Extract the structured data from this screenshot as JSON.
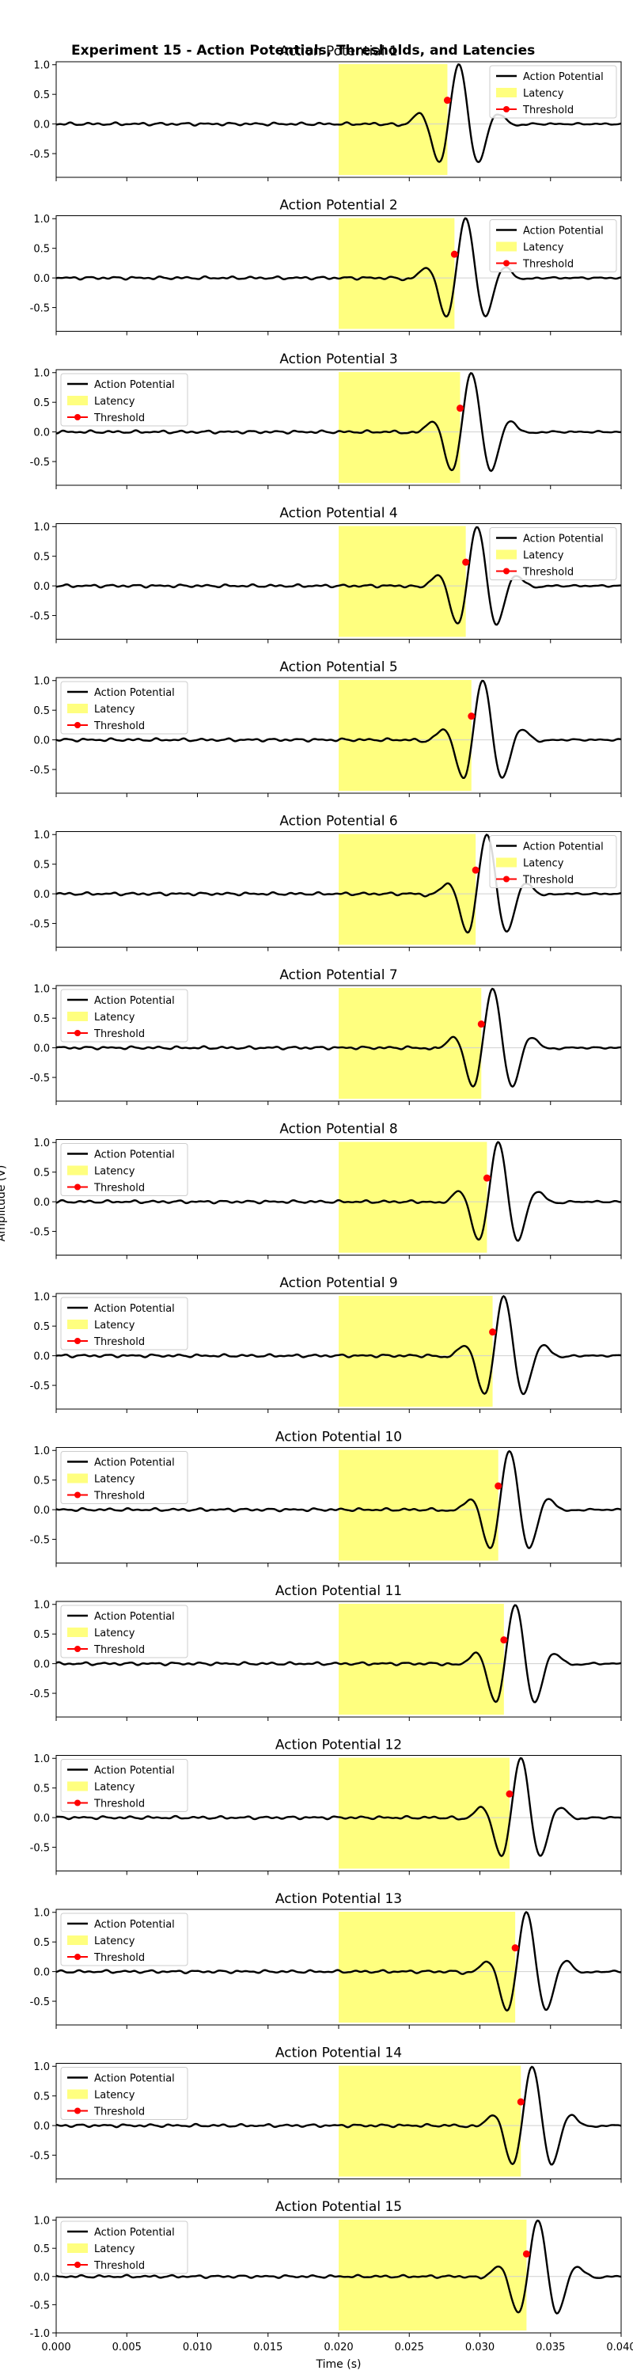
{
  "figure": {
    "suptitle": "Experiment 15 - Action Potentials, Thresholds, and Latencies",
    "xlabel": "Time (s)",
    "ylabel": "Amplitude (V)"
  },
  "chart_data": {
    "type": "line",
    "panel_count": 15,
    "xlim": [
      0.0,
      0.04
    ],
    "x_ticks": [
      "0.000",
      "0.005",
      "0.010",
      "0.015",
      "0.020",
      "0.025",
      "0.030",
      "0.035",
      "0.040"
    ],
    "x_tick_values": [
      0.0,
      0.005,
      0.01,
      0.015,
      0.02,
      0.025,
      0.03,
      0.035,
      0.04
    ],
    "y_ticks": [
      "-0.5",
      "0.0",
      "0.5",
      "1.0"
    ],
    "y_tick_values": [
      -0.5,
      0.0,
      0.5,
      1.0
    ],
    "last_panel_y_ticks": [
      "-1.0",
      "-0.5",
      "0.0",
      "0.5",
      "1.0"
    ],
    "last_panel_y_tick_values": [
      -1.0,
      -0.5,
      0.0,
      0.5,
      1.0
    ],
    "ylim": [
      -0.9,
      1.05
    ],
    "last_panel_ylim": [
      -1.0,
      1.05
    ],
    "grid": "y-zero-line",
    "legend_labels": [
      "Action Potential",
      "Latency",
      "Threshold"
    ],
    "colors": {
      "trace": "#000000",
      "latency": "#ffff7f",
      "threshold": "#ff0000",
      "zero": "#cfcfcf"
    },
    "latency_start": 0.02,
    "panels": [
      {
        "title": "Action Potential 1",
        "peak_time": 0.0285,
        "latency_end": 0.0277,
        "threshold_time": 0.0277,
        "threshold_value": 0.4,
        "legend": "upper-right"
      },
      {
        "title": "Action Potential 2",
        "peak_time": 0.029,
        "latency_end": 0.0282,
        "threshold_time": 0.0282,
        "threshold_value": 0.4,
        "legend": "upper-right"
      },
      {
        "title": "Action Potential 3",
        "peak_time": 0.0294,
        "latency_end": 0.0286,
        "threshold_time": 0.0286,
        "threshold_value": 0.4,
        "legend": "upper-left"
      },
      {
        "title": "Action Potential 4",
        "peak_time": 0.0298,
        "latency_end": 0.029,
        "threshold_time": 0.029,
        "threshold_value": 0.4,
        "legend": "upper-right"
      },
      {
        "title": "Action Potential 5",
        "peak_time": 0.0302,
        "latency_end": 0.0294,
        "threshold_time": 0.0294,
        "threshold_value": 0.4,
        "legend": "upper-left"
      },
      {
        "title": "Action Potential 6",
        "peak_time": 0.0305,
        "latency_end": 0.0297,
        "threshold_time": 0.0297,
        "threshold_value": 0.4,
        "legend": "upper-right"
      },
      {
        "title": "Action Potential 7",
        "peak_time": 0.0309,
        "latency_end": 0.0301,
        "threshold_time": 0.0301,
        "threshold_value": 0.4,
        "legend": "upper-left"
      },
      {
        "title": "Action Potential 8",
        "peak_time": 0.0313,
        "latency_end": 0.0305,
        "threshold_time": 0.0305,
        "threshold_value": 0.4,
        "legend": "upper-left"
      },
      {
        "title": "Action Potential 9",
        "peak_time": 0.0317,
        "latency_end": 0.0309,
        "threshold_time": 0.0309,
        "threshold_value": 0.4,
        "legend": "upper-left"
      },
      {
        "title": "Action Potential 10",
        "peak_time": 0.0321,
        "latency_end": 0.0313,
        "threshold_time": 0.0313,
        "threshold_value": 0.4,
        "legend": "upper-left"
      },
      {
        "title": "Action Potential 11",
        "peak_time": 0.0325,
        "latency_end": 0.0317,
        "threshold_time": 0.0317,
        "threshold_value": 0.4,
        "legend": "upper-left"
      },
      {
        "title": "Action Potential 12",
        "peak_time": 0.0329,
        "latency_end": 0.0321,
        "threshold_time": 0.0321,
        "threshold_value": 0.4,
        "legend": "upper-left"
      },
      {
        "title": "Action Potential 13",
        "peak_time": 0.0333,
        "latency_end": 0.0325,
        "threshold_time": 0.0325,
        "threshold_value": 0.4,
        "legend": "upper-left"
      },
      {
        "title": "Action Potential 14",
        "peak_time": 0.0337,
        "latency_end": 0.0329,
        "threshold_time": 0.0329,
        "threshold_value": 0.4,
        "legend": "upper-left"
      },
      {
        "title": "Action Potential 15",
        "peak_time": 0.0341,
        "latency_end": 0.0333,
        "threshold_time": 0.0333,
        "threshold_value": 0.4,
        "legend": "upper-left"
      }
    ]
  }
}
